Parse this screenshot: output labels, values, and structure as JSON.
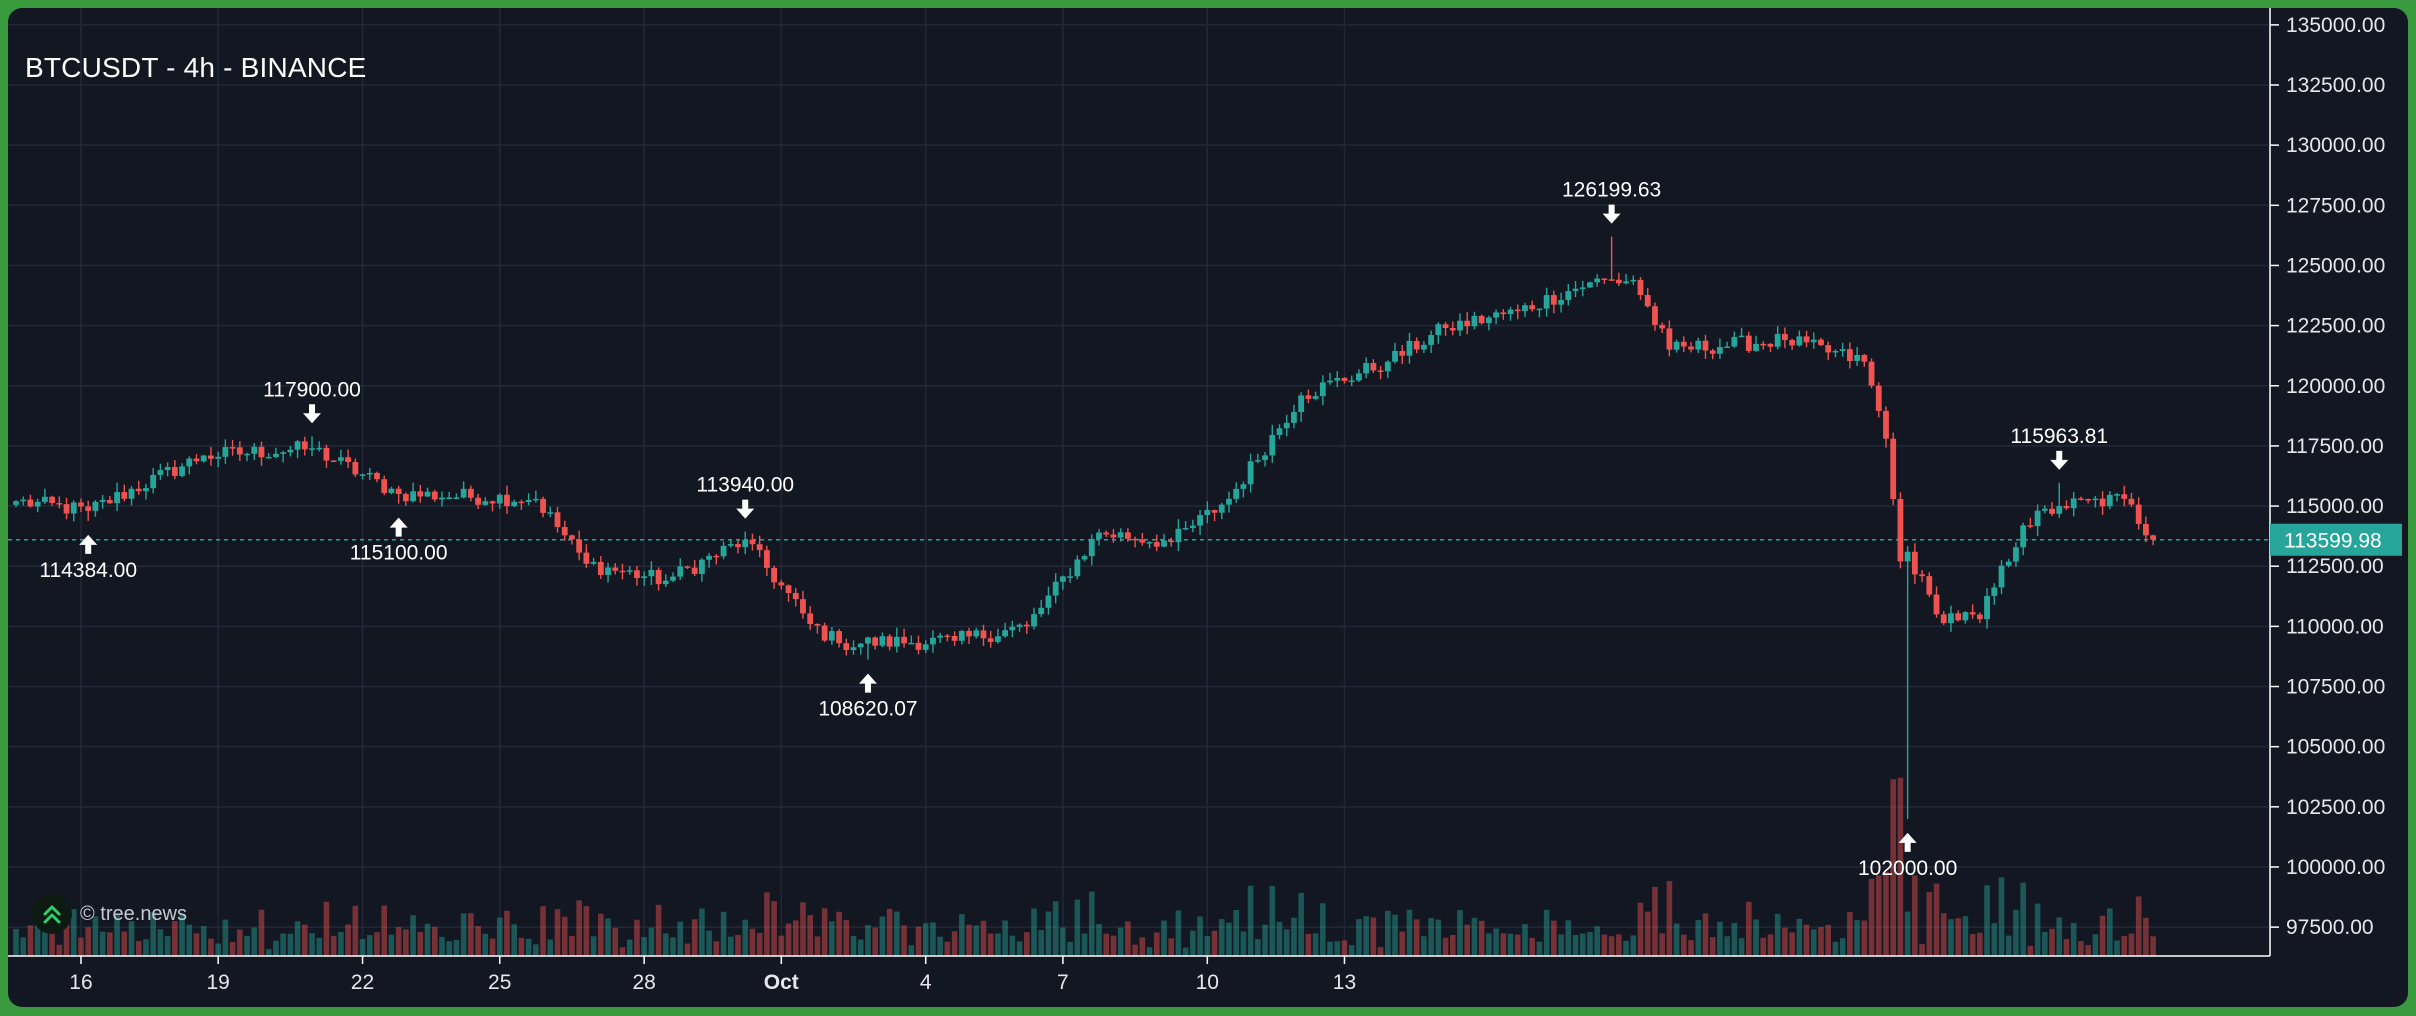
{
  "header": {
    "title": "BTCUSDT - 4h - BINANCE"
  },
  "watermark": {
    "text": "© tree.news",
    "icon": "tree-news-logo-icon"
  },
  "colors": {
    "background": "#131722",
    "frame": "#3a9a3e",
    "up": "#26a69a",
    "down": "#ef5350",
    "grid": "#232838",
    "axis_text": "#e6e7ea",
    "last_price": "#26a69a"
  },
  "chart_data": {
    "type": "candlestick",
    "title": "BTCUSDT - 4h - BINANCE",
    "interval": "4h",
    "x_ticks": [
      "16",
      "19",
      "22",
      "25",
      "28",
      "Oct",
      "4",
      "7",
      "10",
      "13"
    ],
    "y_ticks": [
      "97500.00",
      "100000.00",
      "102500.00",
      "105000.00",
      "107500.00",
      "110000.00",
      "112500.00",
      "115000.00",
      "117500.00",
      "120000.00",
      "122500.00",
      "125000.00",
      "127500.00",
      "130000.00",
      "132500.00",
      "135000.00"
    ],
    "ylim": [
      96300,
      135700
    ],
    "grid": true,
    "last_price": {
      "label": "113599.98",
      "value": 113599.98
    },
    "annotations": [
      {
        "label": "114384.00",
        "kind": "low",
        "value": 114384.0,
        "bar": 10
      },
      {
        "label": "117900.00",
        "kind": "high",
        "value": 117900.0,
        "bar": 41
      },
      {
        "label": "115100.00",
        "kind": "low",
        "value": 115100.0,
        "bar": 53
      },
      {
        "label": "113940.00",
        "kind": "high",
        "value": 113940.0,
        "bar": 101
      },
      {
        "label": "108620.07",
        "kind": "low",
        "value": 108620.07,
        "bar": 118
      },
      {
        "label": "126199.63",
        "kind": "high",
        "value": 126199.63,
        "bar": 221
      },
      {
        "label": "102000.00",
        "kind": "low",
        "value": 102000.0,
        "bar": 262
      },
      {
        "label": "115963.81",
        "kind": "high",
        "value": 115963.81,
        "bar": 283
      }
    ],
    "key_points": [
      {
        "bar": 0,
        "close": 115200
      },
      {
        "bar": 10,
        "close": 114800
      },
      {
        "bar": 26,
        "close": 117100
      },
      {
        "bar": 41,
        "close": 117400
      },
      {
        "bar": 53,
        "close": 115500
      },
      {
        "bar": 72,
        "close": 115300
      },
      {
        "bar": 79,
        "close": 112600
      },
      {
        "bar": 90,
        "close": 111900
      },
      {
        "bar": 101,
        "close": 113600
      },
      {
        "bar": 110,
        "close": 110100
      },
      {
        "bar": 114,
        "close": 109300
      },
      {
        "bar": 130,
        "close": 109400
      },
      {
        "bar": 140,
        "close": 110000
      },
      {
        "bar": 150,
        "close": 113900
      },
      {
        "bar": 160,
        "close": 113500
      },
      {
        "bar": 168,
        "close": 115300
      },
      {
        "bar": 178,
        "close": 119600
      },
      {
        "bar": 190,
        "close": 121000
      },
      {
        "bar": 198,
        "close": 122400
      },
      {
        "bar": 208,
        "close": 123100
      },
      {
        "bar": 218,
        "close": 124300
      },
      {
        "bar": 224,
        "close": 124400
      },
      {
        "bar": 229,
        "close": 121500
      },
      {
        "bar": 245,
        "close": 121900
      },
      {
        "bar": 256,
        "close": 121000
      },
      {
        "bar": 259,
        "close": 117800
      },
      {
        "bar": 261,
        "close": 112700
      },
      {
        "bar": 262,
        "close": 113100
      },
      {
        "bar": 266,
        "close": 110500
      },
      {
        "bar": 272,
        "close": 110300
      },
      {
        "bar": 278,
        "close": 114200
      },
      {
        "bar": 283,
        "close": 115000
      },
      {
        "bar": 292,
        "close": 115300
      },
      {
        "bar": 296,
        "close": 113600
      }
    ]
  }
}
